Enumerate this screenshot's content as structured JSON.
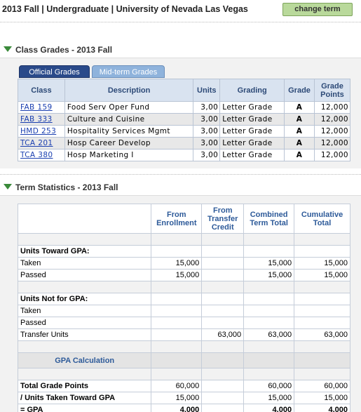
{
  "header": {
    "term_title": "2013 Fall | Undergraduate | University of Nevada Las Vegas",
    "change_term_label": "change term"
  },
  "class_grades": {
    "section_title": "Class Grades - 2013 Fall",
    "tabs": [
      {
        "label": "Official Grades",
        "active": true
      },
      {
        "label": "Mid-term Grades",
        "active": false
      }
    ],
    "columns": [
      "Class",
      "Description",
      "Units",
      "Grading",
      "Grade",
      "Grade Points"
    ],
    "rows": [
      {
        "class": "FAB 159",
        "description": "Food Serv Oper Fund",
        "units": "3,00",
        "grading": "Letter Grade",
        "grade": "A",
        "points": "12,000"
      },
      {
        "class": "FAB 333",
        "description": "Culture and Cuisine",
        "units": "3,00",
        "grading": "Letter Grade",
        "grade": "A",
        "points": "12,000"
      },
      {
        "class": "HMD 253",
        "description": "Hospitality Services Mgmt",
        "units": "3,00",
        "grading": "Letter Grade",
        "grade": "A",
        "points": "12,000"
      },
      {
        "class": "TCA 201",
        "description": "Hosp Career Develop",
        "units": "3,00",
        "grading": "Letter Grade",
        "grade": "A",
        "points": "12,000"
      },
      {
        "class": "TCA 380",
        "description": "Hosp Marketing I",
        "units": "3,00",
        "grading": "Letter Grade",
        "grade": "A",
        "points": "12,000"
      }
    ]
  },
  "term_statistics": {
    "section_title": "Term Statistics - 2013 Fall",
    "columns": [
      "From Enrollment",
      "From Transfer Credit",
      "Combined Term Total",
      "Cumulative Total"
    ],
    "units_toward_gpa": {
      "label": "Units Toward GPA:",
      "taken": {
        "label": "Taken",
        "values": [
          "15,000",
          "",
          "15,000",
          "15,000"
        ]
      },
      "passed": {
        "label": "Passed",
        "values": [
          "15,000",
          "",
          "15,000",
          "15,000"
        ]
      }
    },
    "units_not_for_gpa": {
      "label": "Units Not for GPA:",
      "taken": {
        "label": "Taken",
        "values": [
          "",
          "",
          "",
          ""
        ]
      },
      "passed": {
        "label": "Passed",
        "values": [
          "",
          "",
          "",
          ""
        ]
      },
      "transfer": {
        "label": "Transfer Units",
        "values": [
          "",
          "63,000",
          "63,000",
          "63,000"
        ]
      }
    },
    "gpa_calculation": {
      "label": "GPA Calculation",
      "total_grade_points": {
        "label": "Total Grade Points",
        "values": [
          "60,000",
          "",
          "60,000",
          "60,000"
        ]
      },
      "units_taken": {
        "label": "/ Units Taken Toward GPA",
        "values": [
          "15,000",
          "",
          "15,000",
          "15,000"
        ]
      },
      "gpa": {
        "label": "= GPA",
        "values": [
          "4,000",
          "",
          "4,000",
          "4,000"
        ]
      }
    }
  }
}
